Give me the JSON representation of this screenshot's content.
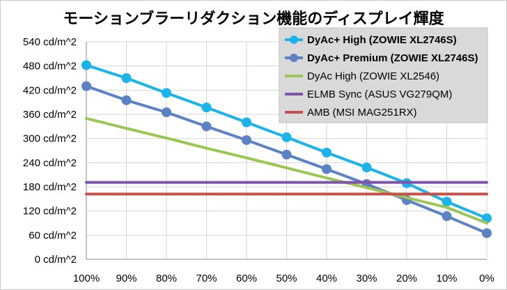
{
  "chart_data": {
    "type": "line",
    "title": "モーションブラーリダクション機能のディスプレイ輝度",
    "xlabel": "",
    "ylabel": "",
    "categories": [
      "100%",
      "90%",
      "80%",
      "70%",
      "60%",
      "50%",
      "40%",
      "30%",
      "20%",
      "10%",
      "0%"
    ],
    "y_ticks": [
      "0 cd/m^2",
      "60 cd/m^2",
      "120 cd/m^2",
      "180 cd/m^2",
      "240 cd/m^2",
      "300 cd/m^2",
      "360 cd/m^2",
      "420 cd/m^2",
      "480 cd/m^2",
      "540 cd/m^2"
    ],
    "ylim": [
      0,
      540
    ],
    "grid": "horizontal and vertical",
    "legend_placement": "top-right",
    "series": [
      {
        "name": "DyAc+ High (ZOWIE XL2746S)",
        "color": "#1ab4ea",
        "markers": true,
        "bold": true,
        "values": [
          482,
          450,
          413,
          377,
          340,
          303,
          265,
          228,
          189,
          143,
          102
        ]
      },
      {
        "name": "DyAc+ Premium (ZOWIE XL2746S)",
        "color": "#5b82c4",
        "markers": true,
        "bold": true,
        "values": [
          430,
          395,
          365,
          330,
          296,
          260,
          224,
          187,
          147,
          107,
          65
        ]
      },
      {
        "name": "DyAc High (ZOWIE XL2546)",
        "color": "#9ac753",
        "markers": false,
        "bold": false,
        "values": [
          350,
          325,
          301,
          276,
          252,
          227,
          202,
          178,
          153,
          129,
          90
        ]
      },
      {
        "name": "ELMB Sync (ASUS VG279QM)",
        "color": "#7f55ab",
        "markers": false,
        "bold": false,
        "values": [
          191,
          191,
          191,
          191,
          191,
          191,
          191,
          191,
          191,
          191,
          191
        ]
      },
      {
        "name": "AMB (MSI MAG251RX)",
        "color": "#c8504b",
        "markers": false,
        "bold": false,
        "values": [
          162,
          162,
          162,
          162,
          162,
          162,
          162,
          162,
          162,
          162,
          162
        ]
      }
    ]
  }
}
